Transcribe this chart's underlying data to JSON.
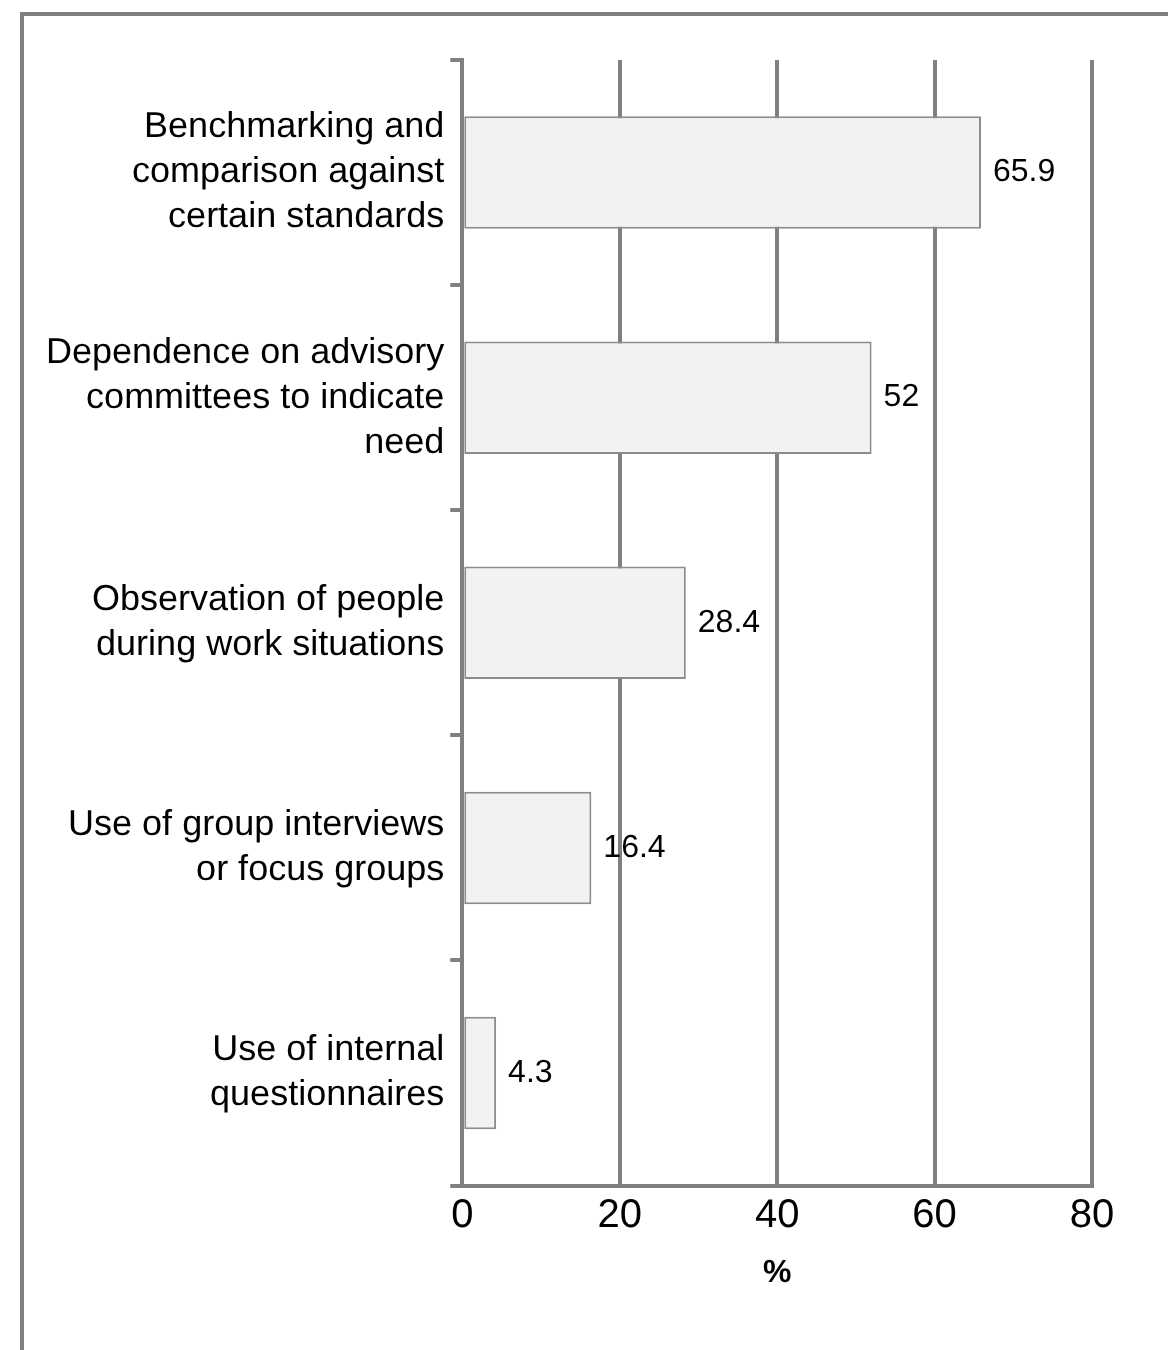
{
  "chart_data": {
    "type": "bar",
    "orientation": "horizontal",
    "categories": [
      "Benchmarking and comparison against certain standards",
      "Dependence on advisory committees to indicate need",
      "Observation of people during work situations",
      "Use of group interviews or focus groups",
      "Use of internal questionnaires"
    ],
    "values": [
      65.9,
      52,
      28.4,
      16.4,
      4.3
    ],
    "color": "#f2f2f2",
    "xlim": [
      0,
      80
    ],
    "xticks": [
      0,
      20,
      40,
      60,
      80
    ],
    "xlabel": "%",
    "grid": "x",
    "legend": false,
    "data_labels": true
  }
}
